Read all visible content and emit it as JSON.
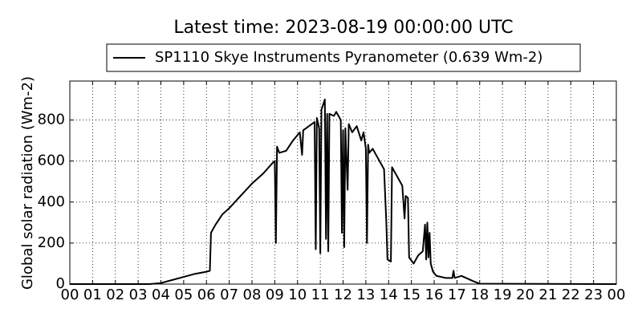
{
  "chart_data": {
    "type": "line",
    "title": "Latest time: 2023-08-19 00:00:00 UTC",
    "y_label": "Global solar radiation (Wm-2)",
    "grid": true,
    "xlim": [
      0,
      24
    ],
    "ylim": [
      0,
      990
    ],
    "xticks": [
      {
        "value": 0,
        "label": "00"
      },
      {
        "value": 1,
        "label": "01"
      },
      {
        "value": 2,
        "label": "02"
      },
      {
        "value": 3,
        "label": "03"
      },
      {
        "value": 4,
        "label": "04"
      },
      {
        "value": 5,
        "label": "05"
      },
      {
        "value": 6,
        "label": "06"
      },
      {
        "value": 7,
        "label": "07"
      },
      {
        "value": 8,
        "label": "08"
      },
      {
        "value": 9,
        "label": "09"
      },
      {
        "value": 10,
        "label": "10"
      },
      {
        "value": 11,
        "label": "11"
      },
      {
        "value": 12,
        "label": "12"
      },
      {
        "value": 13,
        "label": "13"
      },
      {
        "value": 14,
        "label": "14"
      },
      {
        "value": 15,
        "label": "15"
      },
      {
        "value": 16,
        "label": "16"
      },
      {
        "value": 17,
        "label": "17"
      },
      {
        "value": 18,
        "label": "18"
      },
      {
        "value": 19,
        "label": "19"
      },
      {
        "value": 20,
        "label": "20"
      },
      {
        "value": 21,
        "label": "21"
      },
      {
        "value": 22,
        "label": "22"
      },
      {
        "value": 23,
        "label": "23"
      },
      {
        "value": 24,
        "label": "00"
      }
    ],
    "yticks": [
      0,
      200,
      400,
      600,
      800
    ],
    "x": [
      0,
      3.5,
      4,
      4.5,
      5,
      5.5,
      6,
      6.15,
      6.2,
      6.4,
      6.7,
      7,
      7.5,
      8,
      8.5,
      8.9,
      9.0,
      9.05,
      9.1,
      9.2,
      9.5,
      9.8,
      10.1,
      10.2,
      10.25,
      10.5,
      10.75,
      10.8,
      10.85,
      10.95,
      11.0,
      11.05,
      11.2,
      11.25,
      11.3,
      11.35,
      11.4,
      11.6,
      11.7,
      11.9,
      11.95,
      12.0,
      12.05,
      12.1,
      12.2,
      12.25,
      12.4,
      12.6,
      12.8,
      12.9,
      13.0,
      13.05,
      13.1,
      13.15,
      13.3,
      13.5,
      13.8,
      13.9,
      13.95,
      14.1,
      14.15,
      14.4,
      14.6,
      14.7,
      14.75,
      14.85,
      14.9,
      15.1,
      15.3,
      15.5,
      15.6,
      15.65,
      15.7,
      15.75,
      15.8,
      15.85,
      15.95,
      16.1,
      16.5,
      16.8,
      16.85,
      16.9,
      17.2,
      17.4,
      17.7,
      18,
      24
    ],
    "series": [
      {
        "name": "SP1110 Skye Instruments Pyranometer (0.639 Wm-2)",
        "color": "#000000",
        "values": [
          0,
          0,
          5,
          20,
          35,
          50,
          60,
          65,
          250,
          290,
          340,
          370,
          430,
          490,
          540,
          590,
          600,
          200,
          670,
          640,
          650,
          700,
          740,
          630,
          750,
          770,
          790,
          170,
          810,
          760,
          150,
          850,
          900,
          220,
          830,
          160,
          830,
          820,
          840,
          800,
          250,
          750,
          180,
          760,
          460,
          780,
          740,
          770,
          700,
          740,
          660,
          200,
          680,
          640,
          660,
          620,
          560,
          300,
          120,
          110,
          570,
          520,
          480,
          320,
          430,
          420,
          130,
          100,
          140,
          160,
          290,
          120,
          300,
          130,
          250,
          100,
          60,
          40,
          30,
          30,
          65,
          30,
          40,
          30,
          15,
          2,
          0
        ]
      }
    ]
  }
}
